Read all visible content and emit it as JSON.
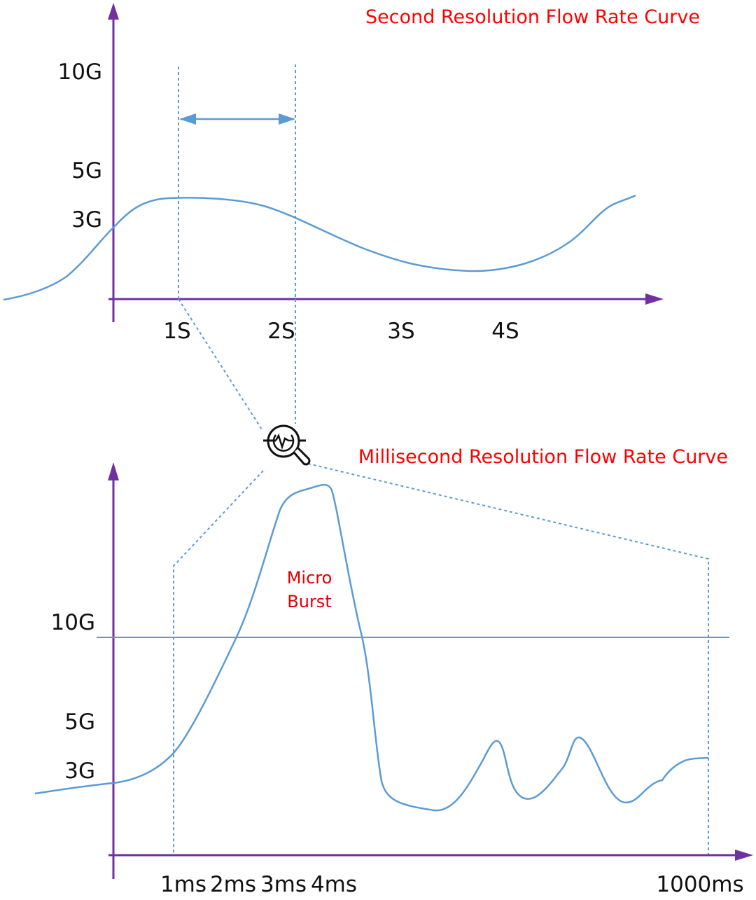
{
  "top_chart": {
    "title": "Second Resolution Flow Rate Curve",
    "y_ticks": [
      "10G",
      "5G",
      "3G"
    ],
    "x_ticks": [
      "1S",
      "2S",
      "3S",
      "4S"
    ]
  },
  "bottom_chart": {
    "title": "Millisecond Resolution Flow Rate Curve",
    "y_ticks": [
      "10G",
      "5G",
      "3G"
    ],
    "x_ticks": [
      "1ms",
      "2ms",
      "3ms",
      "4ms",
      "1000ms"
    ],
    "annotation_line1": "Micro",
    "annotation_line2": "Burst"
  },
  "colors": {
    "axis": "#7030a0",
    "curve": "#5b9bd5",
    "title": "#ff0000"
  },
  "icons": {
    "zoom": "magnifier-with-pulse-icon"
  }
}
